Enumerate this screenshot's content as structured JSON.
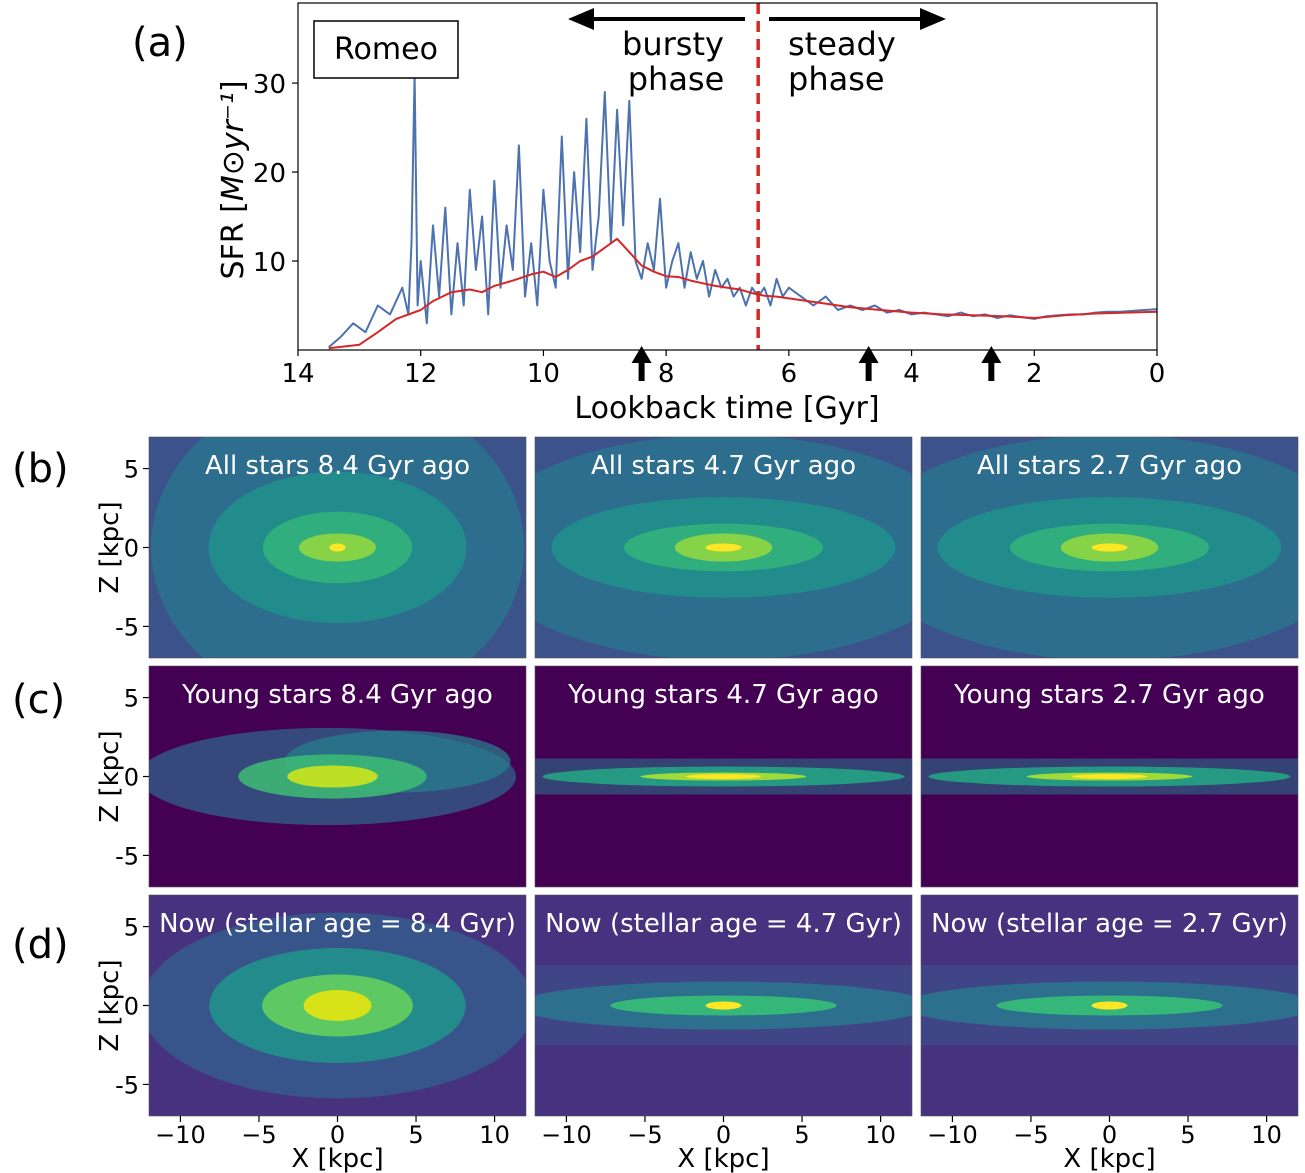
{
  "colors": {
    "sfr_raw": "#4c72b0",
    "sfr_smooth": "#d62728",
    "divider": "#d62728",
    "viridis_low": "#440154",
    "viridis_mid": "#21918c",
    "viridis_high": "#fde725"
  },
  "panel_labels": [
    "(a)",
    "(b)",
    "(c)",
    "(d)"
  ],
  "chart_data": [
    {
      "type": "line",
      "panel": "(a)",
      "legend_box": "Romeo",
      "xlabel": "Lookback time [Gyr]",
      "ylabel_text": "SFR [",
      "ylabel_math": "M⊙yr⁻¹",
      "ylabel_close": "]",
      "xlim": [
        14,
        0
      ],
      "ylim": [
        0,
        39
      ],
      "xticks": [
        14,
        12,
        10,
        8,
        6,
        4,
        2,
        0
      ],
      "yticks": [
        10,
        20,
        30
      ],
      "divider_x": 6.5,
      "phase_labels": {
        "left": [
          "bursty",
          "phase"
        ],
        "right": [
          "steady",
          "phase"
        ]
      },
      "arrow_marks_at": [
        8.4,
        4.7,
        2.7
      ],
      "series": [
        {
          "style": "raw",
          "x": [
            13.5,
            13.3,
            13.1,
            12.9,
            12.7,
            12.5,
            12.3,
            12.2,
            12.15,
            12.1,
            12.05,
            12.0,
            11.9,
            11.8,
            11.7,
            11.6,
            11.5,
            11.4,
            11.3,
            11.2,
            11.1,
            11.0,
            10.9,
            10.8,
            10.7,
            10.6,
            10.5,
            10.4,
            10.3,
            10.2,
            10.1,
            10.0,
            9.9,
            9.8,
            9.7,
            9.6,
            9.5,
            9.4,
            9.3,
            9.2,
            9.1,
            9.0,
            8.9,
            8.8,
            8.7,
            8.6,
            8.5,
            8.4,
            8.3,
            8.2,
            8.1,
            8.0,
            7.9,
            7.8,
            7.7,
            7.6,
            7.5,
            7.4,
            7.3,
            7.2,
            7.1,
            7.0,
            6.9,
            6.8,
            6.7,
            6.6,
            6.5,
            6.4,
            6.3,
            6.2,
            6.1,
            6.0,
            5.8,
            5.6,
            5.4,
            5.2,
            5.0,
            4.8,
            4.6,
            4.4,
            4.2,
            4.0,
            3.8,
            3.6,
            3.4,
            3.2,
            3.0,
            2.8,
            2.6,
            2.4,
            2.2,
            2.0,
            1.8,
            1.6,
            1.4,
            1.2,
            1.0,
            0.8,
            0.6,
            0.4,
            0.2,
            0.0
          ],
          "y": [
            0.3,
            1.5,
            3.0,
            2.0,
            5.0,
            4.0,
            7.0,
            4.0,
            12.0,
            31.0,
            5.0,
            10.0,
            3.0,
            14.0,
            6.0,
            16.0,
            4.0,
            12.0,
            5.0,
            18.0,
            9.0,
            15.0,
            4.0,
            19.0,
            7.0,
            14.0,
            9.0,
            23.0,
            6.0,
            12.0,
            5.0,
            18.0,
            10.0,
            7.0,
            24.0,
            8.0,
            20.0,
            11.0,
            26.0,
            9.0,
            15.0,
            29.0,
            12.0,
            27.0,
            14.0,
            28.0,
            10.0,
            8.0,
            12.0,
            9.0,
            17.0,
            7.0,
            10.0,
            12.0,
            7.0,
            11.0,
            8.0,
            10.0,
            6.0,
            9.0,
            7.0,
            8.0,
            6.0,
            7.0,
            5.0,
            7.0,
            6.0,
            7.0,
            5.0,
            8.0,
            6.0,
            7.0,
            6.0,
            5.0,
            6.0,
            4.5,
            5.0,
            4.5,
            5.0,
            4.2,
            4.5,
            4.0,
            4.2,
            4.0,
            3.8,
            4.2,
            3.8,
            4.0,
            3.6,
            3.9,
            3.7,
            3.5,
            3.8,
            3.9,
            4.0,
            4.0,
            4.2,
            4.3,
            4.3,
            4.4,
            4.5,
            4.6
          ]
        },
        {
          "style": "smoothed",
          "x": [
            13.5,
            13.0,
            12.7,
            12.4,
            12.0,
            11.8,
            11.5,
            11.2,
            11.0,
            10.8,
            10.5,
            10.2,
            10.0,
            9.8,
            9.6,
            9.4,
            9.2,
            9.0,
            8.8,
            8.6,
            8.4,
            8.2,
            8.0,
            7.8,
            7.6,
            7.4,
            7.2,
            7.0,
            6.8,
            6.6,
            6.4,
            6.2,
            6.0,
            5.5,
            5.0,
            4.5,
            4.0,
            3.5,
            3.0,
            2.5,
            2.0,
            1.5,
            1.0,
            0.5,
            0.0
          ],
          "y": [
            0.2,
            0.6,
            2.0,
            3.5,
            4.5,
            5.5,
            6.5,
            6.8,
            6.5,
            7.2,
            7.8,
            8.5,
            8.8,
            8.2,
            9.0,
            10.0,
            10.5,
            11.5,
            12.5,
            11.0,
            9.5,
            8.8,
            8.3,
            8.2,
            7.8,
            7.5,
            7.2,
            7.0,
            6.8,
            6.4,
            6.1,
            6.0,
            5.8,
            5.3,
            4.8,
            4.5,
            4.2,
            4.0,
            3.9,
            3.8,
            3.6,
            3.9,
            4.1,
            4.2,
            4.3
          ]
        }
      ]
    },
    {
      "type": "heatmap",
      "rows": [
        {
          "panel": "(b)",
          "titles": [
            "All stars 8.4 Gyr ago",
            "All stars 4.7 Gyr ago",
            "All stars 2.7 Gyr ago"
          ]
        },
        {
          "panel": "(c)",
          "titles": [
            "Young stars 8.4 Gyr ago",
            "Young stars 4.7 Gyr ago",
            "Young stars 2.7 Gyr ago"
          ]
        },
        {
          "panel": "(d)",
          "titles": [
            "Now (stellar age = 8.4 Gyr)",
            "Now (stellar age = 4.7 Gyr)",
            "Now (stellar age = 2.7 Gyr)"
          ]
        }
      ],
      "xlabel": "X [kpc]",
      "ylabel": "Z [kpc]",
      "xlim": [
        -12,
        12
      ],
      "ylim": [
        -7,
        7
      ],
      "xticks": [
        -10,
        -5,
        0,
        5,
        10
      ],
      "yticks": [
        5,
        0,
        -5
      ]
    }
  ]
}
